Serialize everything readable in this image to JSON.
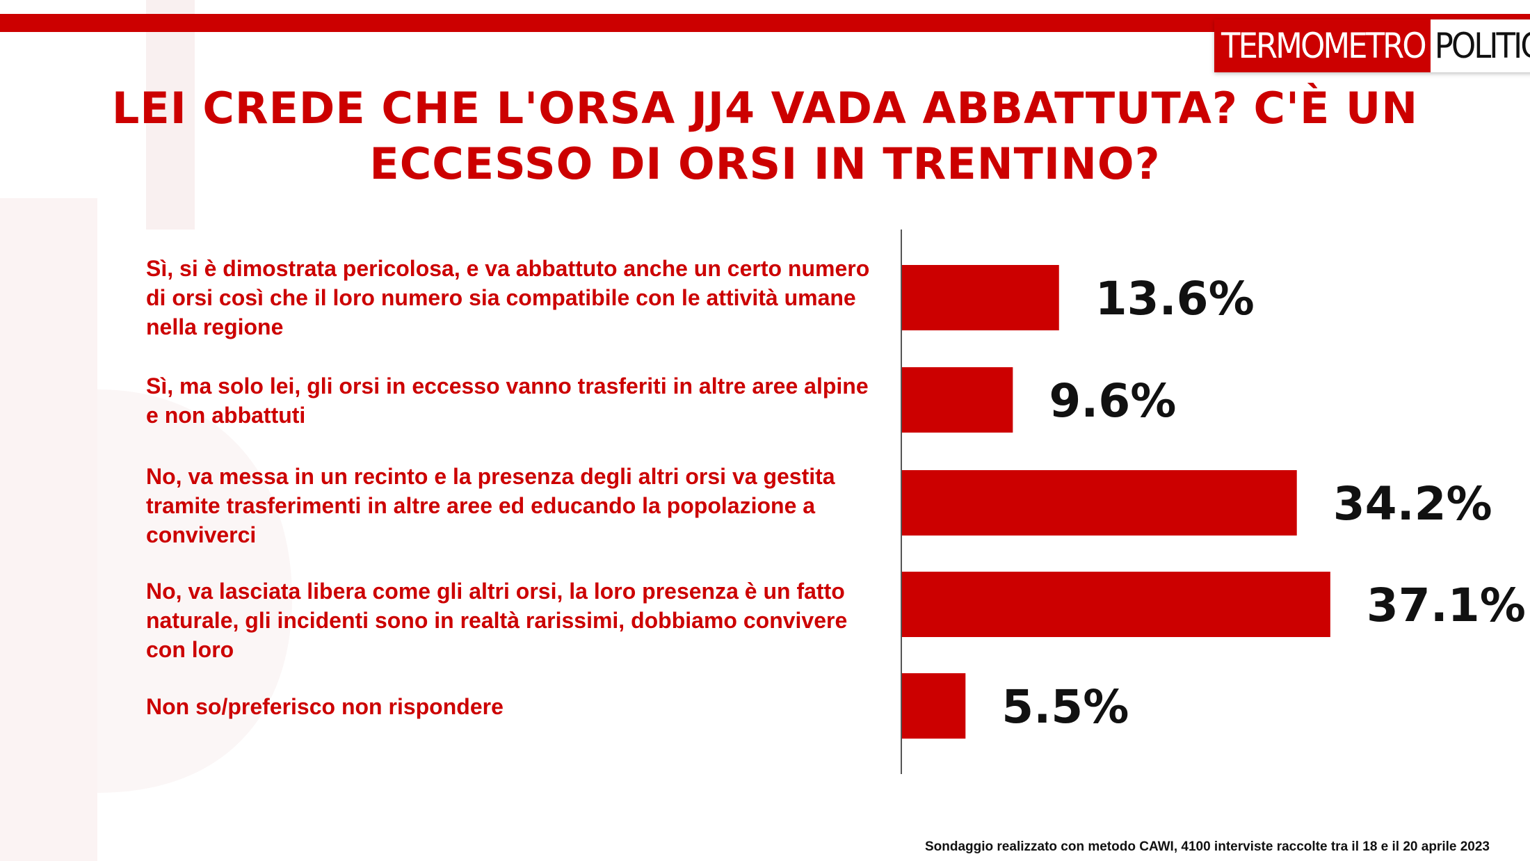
{
  "brand": {
    "part1": "TERMOMETRO",
    "part2": "POLITICO",
    "accent_color": "#cc0000"
  },
  "title": "LEI CREDE CHE L'ORSA JJ4 VADA ABBATTUTA? C'È UN ECCESSO DI ORSI IN TRENTINO?",
  "footnote": "Sondaggio realizzato con metodo CAWI, 4100 interviste raccolte tra il 18 e il 20 aprile 2023",
  "chart_data": {
    "type": "bar",
    "orientation": "horizontal",
    "title": "LEI CREDE CHE L'ORSA JJ4 VADA ABBATTUTA? C'È UN ECCESSO DI ORSI IN TRENTINO?",
    "categories": [
      "Sì, si è dimostrata pericolosa, e va abbattuto anche un certo numero di orsi così che il loro numero sia compatibile con le attività umane nella regione",
      "Sì, ma solo lei, gli orsi in eccesso vanno trasferiti in altre aree alpine e non abbattuti",
      "No, va messa in un recinto e la presenza degli altri orsi va gestita tramite trasferimenti in altre aree ed educando la popolazione a conviverci",
      "No, va lasciata libera come gli altri orsi, la loro presenza è un fatto naturale, gli incidenti sono in realtà  rarissimi, dobbiamo convivere con loro",
      "Non so/preferisco non rispondere"
    ],
    "values": [
      13.6,
      9.6,
      34.2,
      37.1,
      5.5
    ],
    "value_labels": [
      "13.6%",
      "9.6%",
      "34.2%",
      "37.1%",
      "5.5%"
    ],
    "unit": "%",
    "bar_color": "#cc0000",
    "xlim": [
      0,
      40
    ],
    "grid": false,
    "legend": "none"
  }
}
